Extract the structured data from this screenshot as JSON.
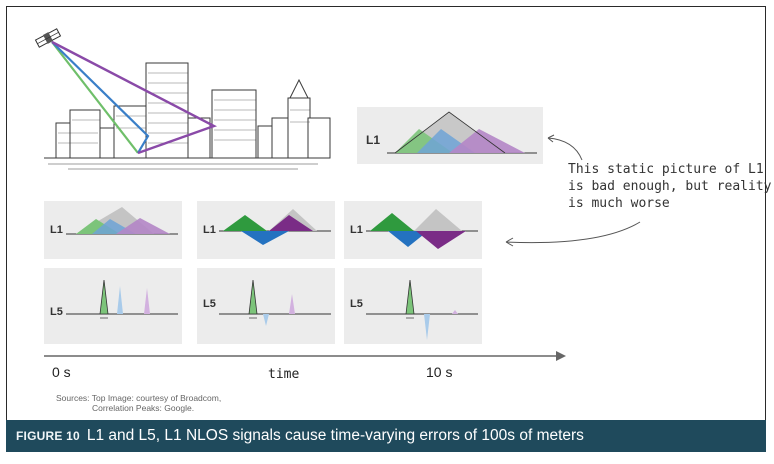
{
  "illustration": {
    "signal_colors": {
      "green": "#6fbf6a",
      "blue": "#3a7fc8",
      "purple": "#8a4aa8"
    },
    "building_color": "#3a3a3a"
  },
  "big_panel": {
    "label": "L1"
  },
  "annotation": {
    "line1": "This static picture of L1",
    "line2": "is bad enough, but reality",
    "line3": "is much worse"
  },
  "l1_row": [
    {
      "label": "L1"
    },
    {
      "label": "L1"
    },
    {
      "label": "L1"
    }
  ],
  "l5_row": [
    {
      "label": "L5"
    },
    {
      "label": "L5"
    },
    {
      "label": "L5"
    }
  ],
  "timeline": {
    "start": "0 s",
    "middle": "time",
    "end": "10 s"
  },
  "sources": {
    "line1": "Sources:  Top Image: courtesy of Broadcom,",
    "line2": "Correlation Peaks: Google."
  },
  "caption": {
    "figure_label": "FIGURE 10",
    "text": "L1 and L5, L1 NLOS signals cause time-varying errors of 100s of meters"
  },
  "colors": {
    "caption_bg": "#1f4a5c",
    "panel_bg": "#ececec",
    "green": "#7cc47a",
    "blue": "#6fa3d6",
    "purple": "#b486c6",
    "grey": "#c4c4c4",
    "dark_green": "#2f9a3e",
    "dark_blue": "#2472c0",
    "dark_purple": "#7a2c86"
  }
}
